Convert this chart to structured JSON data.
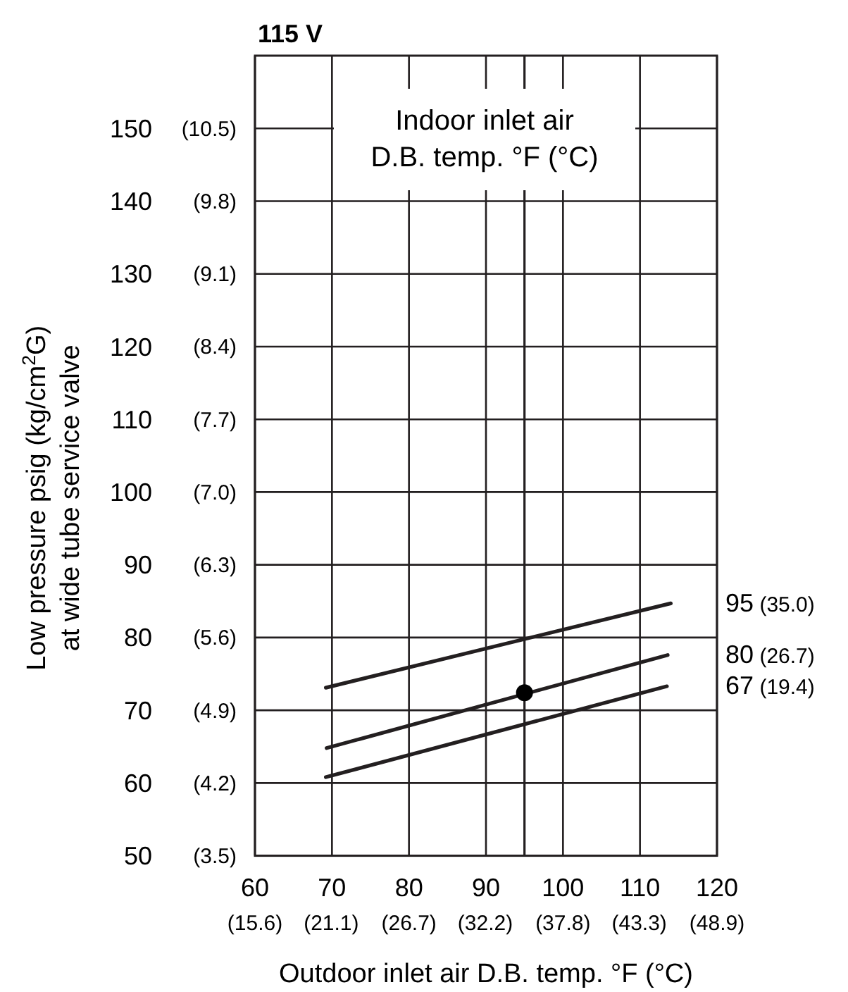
{
  "chart_data": {
    "type": "line",
    "title": "115 V",
    "xlabel": "Outdoor inlet air D.B. temp. °F (°C)",
    "ylabel": "Low pressure psig (kg/cm$^{2}$G) at wide tube service valve",
    "legend_title": "Indoor inlet air D.B. temp. °F (°C)",
    "xlim": [
      60,
      120
    ],
    "ylim": [
      50,
      160
    ],
    "xticks": [
      60,
      70,
      80,
      90,
      100,
      110,
      120
    ],
    "x2lim": [
      15.6,
      48.9
    ],
    "x2ticks": [
      {
        "value": 15.6,
        "label": "(15.6)"
      },
      {
        "value": 21.1,
        "label": "(21.1)"
      },
      {
        "value": 26.7,
        "label": "(26.7)"
      },
      {
        "value": 32.2,
        "label": "(32.2)"
      },
      {
        "value": 37.8,
        "label": "(37.8)"
      },
      {
        "value": 43.3,
        "label": "(43.3)"
      },
      {
        "value": 48.9,
        "label": "(48.9)"
      }
    ],
    "yticks": [
      50,
      60,
      70,
      80,
      90,
      100,
      110,
      120,
      130,
      140,
      150
    ],
    "y2lim": [
      3.5,
      11.2
    ],
    "y2ticks": [
      {
        "value": 3.5,
        "label": "(3.5)"
      },
      {
        "value": 4.2,
        "label": "(4.2)"
      },
      {
        "value": 4.9,
        "label": "(4.9)"
      },
      {
        "value": 5.6,
        "label": "(5.6)"
      },
      {
        "value": 6.3,
        "label": "(6.3)"
      },
      {
        "value": 7.0,
        "label": "(7.0)"
      },
      {
        "value": 7.7,
        "label": "(7.7)"
      },
      {
        "value": 8.4,
        "label": "(8.4)"
      },
      {
        "value": 9.1,
        "label": "(9.1)"
      },
      {
        "value": 9.8,
        "label": "(9.8)"
      },
      {
        "value": 10.5,
        "label": "(10.5)"
      }
    ],
    "grid": true,
    "marker": "none",
    "line_style": "solid",
    "series": [
      {
        "name": "95 (35.0)",
        "color": "#231f20",
        "x": [
          69.2,
          114
        ],
        "values": [
          73.1,
          84.7
        ]
      },
      {
        "name": "80 (26.7)",
        "color": "#231f20",
        "x": [
          69.3,
          113.6
        ],
        "values": [
          64.8,
          77.6
        ]
      },
      {
        "name": "67 (19.4)",
        "color": "#231f20",
        "x": [
          69.2,
          113.5
        ],
        "values": [
          60.8,
          73.3
        ]
      },
      {
        "type": "scatter",
        "color": "#000000",
        "marker": "circle",
        "x": [
          95
        ],
        "values": [
          72.4
        ]
      }
    ],
    "ref_lines": [
      {
        "axis": "x",
        "value": 95,
        "color": "#231f20"
      }
    ]
  }
}
